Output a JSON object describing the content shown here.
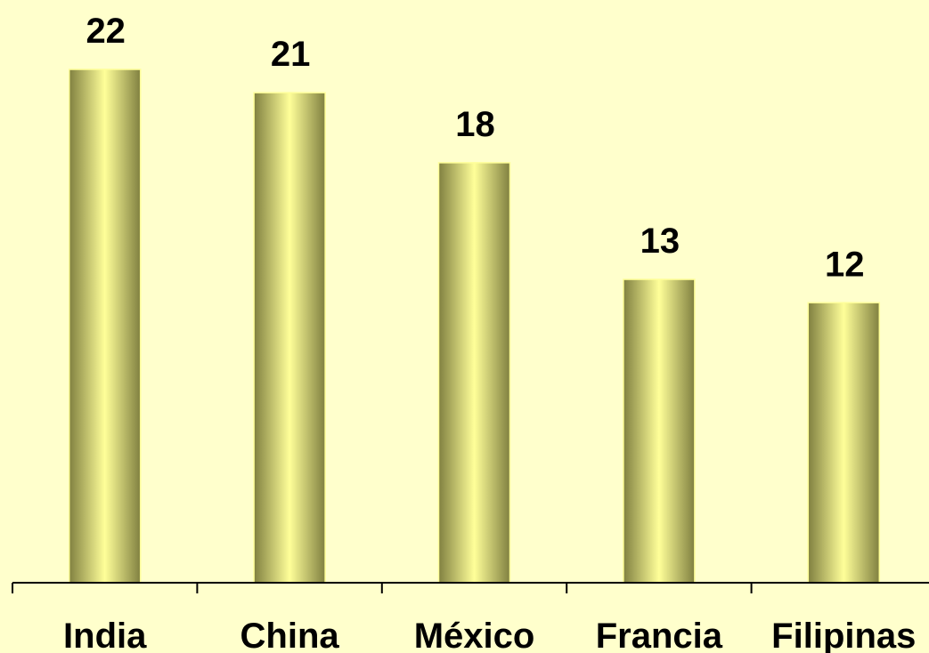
{
  "chart_data": {
    "type": "bar",
    "categories": [
      "India",
      "China",
      "México",
      "Francia",
      "Filipinas"
    ],
    "values": [
      22,
      21,
      18,
      13,
      12
    ],
    "title": "",
    "xlabel": "",
    "ylabel": "",
    "ylim": [
      0,
      22
    ],
    "grid": false,
    "legend": "none",
    "data_labels": true
  },
  "colors": {
    "background": "#FFFFCC",
    "bar_center": "#FFFF99",
    "bar_edge": "#808040",
    "axis": "#000000",
    "text": "#000000"
  }
}
